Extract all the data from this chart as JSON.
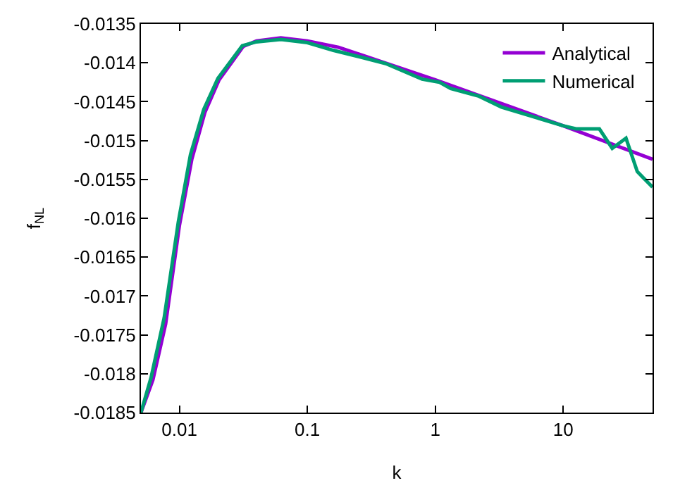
{
  "chart_data": {
    "type": "line",
    "xlabel": "k",
    "ylabel": "f$_{NL}$",
    "log": "x",
    "xlim": [
      0.005,
      50
    ],
    "xticks": [
      0.01,
      0.1,
      1,
      10
    ],
    "ylim": [
      -0.0185,
      -0.0135
    ],
    "yticks": [
      -0.0185,
      -0.018,
      -0.0175,
      -0.017,
      -0.0165,
      -0.016,
      -0.0155,
      -0.015,
      -0.0145,
      -0.014,
      -0.0135
    ],
    "grid": false,
    "legend": "top right",
    "line_style": "solid",
    "marker": "none",
    "series": [
      {
        "name": "Analytical",
        "color": "#9400d3",
        "x": [
          0.005,
          0.0062,
          0.0078,
          0.01,
          0.0125,
          0.0158,
          0.0204,
          0.0315,
          0.04,
          0.062,
          0.1,
          0.175,
          1,
          10,
          50
        ],
        "values": [
          -0.0185,
          -0.01808,
          -0.01736,
          -0.01609,
          -0.01524,
          -0.01464,
          -0.01422,
          -0.01379,
          -0.01372,
          -0.01368,
          -0.01372,
          -0.0138,
          -0.01422,
          -0.01481,
          -0.01524
        ]
      },
      {
        "name": "Numerical",
        "color": "#009e73",
        "x": [
          0.005,
          0.006,
          0.0076,
          0.0098,
          0.0122,
          0.0155,
          0.02,
          0.031,
          0.04,
          0.062,
          0.1,
          0.16,
          0.267,
          0.41,
          0.79,
          1.08,
          1.32,
          2.2,
          3.3,
          10,
          12.6,
          19.2,
          24.2,
          31,
          38,
          50
        ],
        "values": [
          -0.0185,
          -0.01805,
          -0.01728,
          -0.01605,
          -0.01518,
          -0.0146,
          -0.0142,
          -0.01378,
          -0.01373,
          -0.0137,
          -0.01374,
          -0.01384,
          -0.01393,
          -0.01401,
          -0.01421,
          -0.01425,
          -0.01433,
          -0.01443,
          -0.01457,
          -0.01481,
          -0.01485,
          -0.01485,
          -0.0151,
          -0.01497,
          -0.0154,
          -0.0156
        ]
      }
    ]
  }
}
